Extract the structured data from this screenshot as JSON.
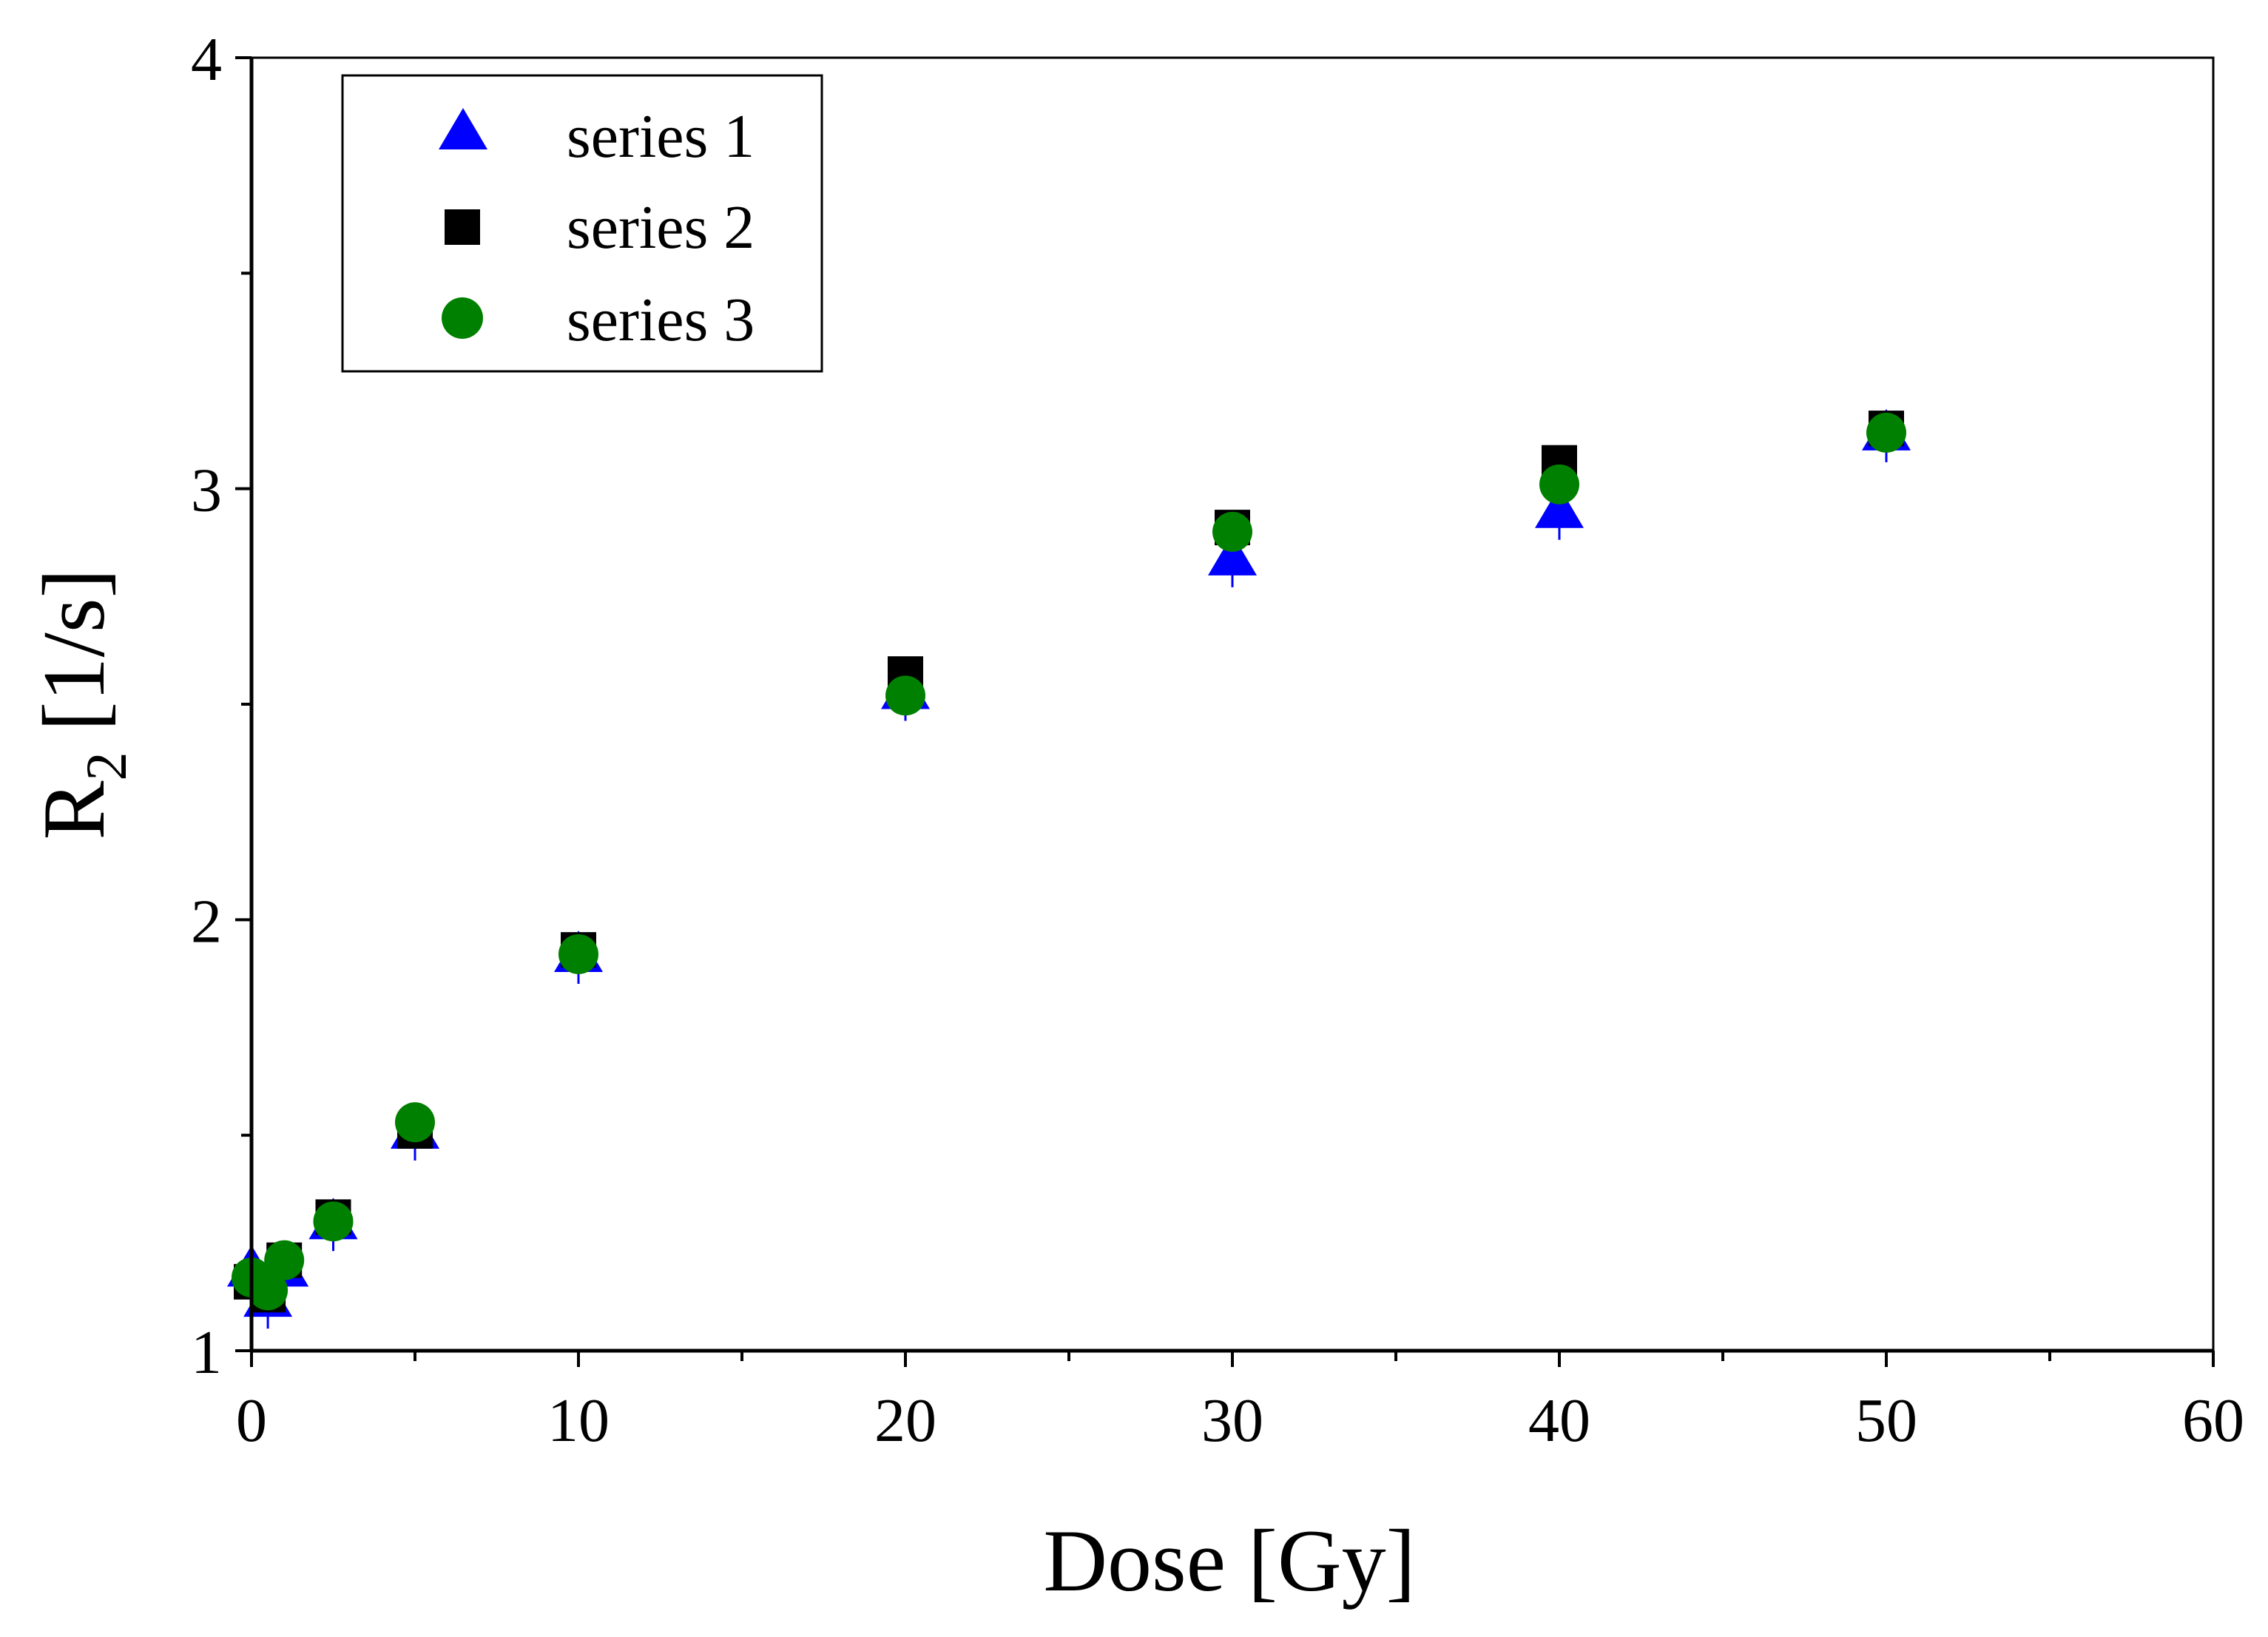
{
  "chart_data": {
    "type": "scatter",
    "title": "",
    "xlabel": "Dose [Gy]",
    "ylabel_main": "R",
    "ylabel_sub": "2",
    "ylabel_unit": "[1/s]",
    "xlim": [
      0,
      60
    ],
    "ylim": [
      1,
      4
    ],
    "x_ticks": [
      0,
      10,
      20,
      30,
      40,
      50,
      60
    ],
    "x_tick_labels": [
      "0",
      "10",
      "20",
      "30",
      "40",
      "50",
      "60"
    ],
    "y_ticks": [
      1,
      2,
      3,
      4
    ],
    "y_tick_labels": [
      "1",
      "2",
      "3",
      "4"
    ],
    "grid": false,
    "legend_position": "top-left",
    "series": [
      {
        "name": "series 1",
        "marker": "triangle",
        "color": "#0000ff",
        "x": [
          0,
          0.5,
          1,
          2.5,
          5,
          10,
          20,
          30,
          40,
          50
        ],
        "y": [
          1.19,
          1.12,
          1.19,
          1.3,
          1.51,
          1.92,
          2.53,
          2.84,
          2.95,
          3.13
        ]
      },
      {
        "name": "series 2",
        "marker": "square",
        "color": "#000000",
        "x": [
          0,
          0.5,
          1,
          2.5,
          5,
          10,
          20,
          30,
          40,
          50
        ],
        "y": [
          1.16,
          1.13,
          1.21,
          1.31,
          1.51,
          1.93,
          2.57,
          2.91,
          3.06,
          3.14
        ]
      },
      {
        "name": "series 3",
        "marker": "circle",
        "color": "#008000",
        "x": [
          0,
          0.5,
          1,
          2.5,
          5,
          10,
          20,
          30,
          40,
          50
        ],
        "y": [
          1.17,
          1.14,
          1.21,
          1.3,
          1.53,
          1.92,
          2.52,
          2.9,
          3.01,
          3.13
        ]
      }
    ]
  }
}
